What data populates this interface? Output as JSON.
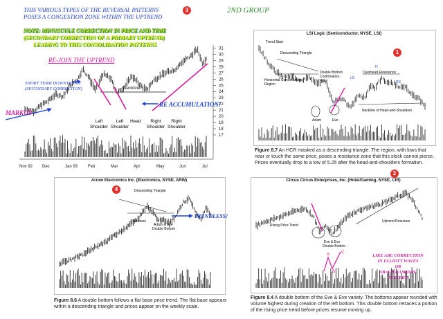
{
  "header": {
    "line1": "THIS VARIOUS TYPES OF THE REVERSAL PATTERNS",
    "line2": "POSES A CONGESTION ZONE WITHIN  THE UPTREND",
    "badge3": "3",
    "group": "2ND GROUP",
    "note1": "NOTE: MINUSCULE CORRECTION IN PRICE AND TIME",
    "note2": "(SECONDARY CORRECTION OF A PRIMARY UPTREND)",
    "note3": "LEADING TO THIS CONSOLIDATION PATTERNS",
    "rejoin": "RE-JOIN THE UPTREND"
  },
  "colors": {
    "annotation_blue": "#1a3fd6",
    "annotation_magenta": "#d81b9c",
    "note_yellow": "#ffff00",
    "note_green": "#2e8b2e",
    "badge_red": "#e0312b",
    "bar_black": "#111111"
  },
  "chart_data": [
    {
      "id": "main",
      "type": "bar",
      "title": "",
      "x_ticks": [
        "Nov 92",
        "Dec",
        "Jan 93",
        "Feb",
        "Mar",
        "Apr",
        "May",
        "Jun",
        "Jul"
      ],
      "y_ticks": [
        17,
        18,
        19,
        20,
        21,
        22,
        23,
        24,
        25,
        26,
        27,
        28,
        29,
        30,
        31
      ],
      "ylim": [
        17,
        31.5
      ],
      "price_path": [
        [
          0,
          21.2
        ],
        [
          0.05,
          20.8
        ],
        [
          0.09,
          21.8
        ],
        [
          0.13,
          22.5
        ],
        [
          0.17,
          23.6
        ],
        [
          0.21,
          23.2
        ],
        [
          0.25,
          25.0
        ],
        [
          0.29,
          26.0
        ],
        [
          0.32,
          27.6
        ],
        [
          0.35,
          26.4
        ],
        [
          0.39,
          24.2
        ],
        [
          0.43,
          26.8
        ],
        [
          0.47,
          26.2
        ],
        [
          0.51,
          23.8
        ],
        [
          0.55,
          24.8
        ],
        [
          0.59,
          26.5
        ],
        [
          0.63,
          25.2
        ],
        [
          0.67,
          24.2
        ],
        [
          0.71,
          25.8
        ],
        [
          0.75,
          26.6
        ],
        [
          0.79,
          27.2
        ],
        [
          0.83,
          27.6
        ],
        [
          0.87,
          28.8
        ],
        [
          0.91,
          29.6
        ],
        [
          0.95,
          30.8
        ],
        [
          0.98,
          28.6
        ],
        [
          1.0,
          29.4
        ]
      ],
      "annotations": {
        "short_term_1": "SHORT TERM DOWNTREND",
        "short_term_2": "(SECONDARY CORRECTION)",
        "markup": "MARKUP",
        "neckline": "Neckline",
        "re_accumulation": "RE ACCUMULATION!",
        "left_shoulder_a": "Left Shoulder",
        "left_shoulder_b": "Left Shoulder",
        "head": "Head",
        "right_shoulder_a": "Right Shoulder",
        "right_shoulder_b": "Right Shoulder"
      }
    },
    {
      "id": "fig87",
      "type": "bar",
      "title": "LSI Logic (Semiconductor, NYSE, LSI)",
      "badge": "1",
      "price_path": [
        [
          0,
          0.92
        ],
        [
          0.05,
          0.75
        ],
        [
          0.1,
          0.62
        ],
        [
          0.15,
          0.55
        ],
        [
          0.2,
          0.56
        ],
        [
          0.25,
          0.52
        ],
        [
          0.3,
          0.55
        ],
        [
          0.35,
          0.48
        ],
        [
          0.4,
          0.5
        ],
        [
          0.45,
          0.25
        ],
        [
          0.5,
          0.3
        ],
        [
          0.55,
          0.18
        ],
        [
          0.6,
          0.33
        ],
        [
          0.64,
          0.3
        ],
        [
          0.67,
          0.46
        ],
        [
          0.7,
          0.42
        ],
        [
          0.74,
          0.55
        ],
        [
          0.77,
          0.48
        ],
        [
          0.8,
          0.5
        ],
        [
          0.84,
          0.42
        ],
        [
          0.88,
          0.45
        ],
        [
          0.92,
          0.34
        ],
        [
          0.96,
          0.3
        ],
        [
          1.0,
          0.2
        ]
      ],
      "annotations": {
        "trend_start": "Trend Start",
        "descending_triangle": "Descending Triangle",
        "horizontal_1": "Horizontal Consolidation",
        "horizontal_2": "Region",
        "double_bottom_1": "Double Bottom",
        "double_bottom_2": "Confirmation",
        "double_bottom_3": "Price",
        "ls": "LS",
        "overhead_resistance": "Overhead Resistance",
        "h": "H",
        "rs": "RS",
        "neckline_hs": "Neckline of Head-and-Shoulders",
        "adam": "Adam",
        "eve": "Eve"
      },
      "caption_label": "Figure 8.7",
      "caption_text": "An HCR masked as a descending triangle. The region, with lows that near or touch the same price, poses a resistance zone that this stock cannot pierce. Prices eventually drop to a low of 5.25 after the head-and-shoulders formation."
    },
    {
      "id": "fig86",
      "type": "bar",
      "title": "Arrow Electronics Inc. (Electronics, NYSE, ARW)",
      "badge": "4",
      "price_path": [
        [
          0,
          0.05
        ],
        [
          0.05,
          0.08
        ],
        [
          0.1,
          0.12
        ],
        [
          0.15,
          0.16
        ],
        [
          0.2,
          0.22
        ],
        [
          0.25,
          0.28
        ],
        [
          0.3,
          0.32
        ],
        [
          0.35,
          0.4
        ],
        [
          0.4,
          0.46
        ],
        [
          0.45,
          0.54
        ],
        [
          0.5,
          0.6
        ],
        [
          0.55,
          0.72
        ],
        [
          0.58,
          0.8
        ],
        [
          0.61,
          0.74
        ],
        [
          0.64,
          0.66
        ],
        [
          0.67,
          0.6
        ],
        [
          0.7,
          0.62
        ],
        [
          0.73,
          0.58
        ],
        [
          0.76,
          0.64
        ],
        [
          0.79,
          0.75
        ],
        [
          0.82,
          0.85
        ],
        [
          0.86,
          0.9
        ],
        [
          0.9,
          0.72
        ],
        [
          0.94,
          0.62
        ],
        [
          0.97,
          0.78
        ],
        [
          1.0,
          0.7
        ]
      ],
      "annotations": {
        "descending_triangle": "Descending Triangle",
        "flat_base": "Flat Base",
        "adam_eve_1": "Adam & Eve",
        "adam_eve_2": "Double Bottom",
        "trendless": "TRENDLESS!"
      },
      "caption_label": "Figure 8.6",
      "caption_text": "A double bottom follows a flat base price trend. The flat base appears within a descending triangle and prices appear on the weekly scale."
    },
    {
      "id": "fig84",
      "type": "bar",
      "title": "Circus Circus Enterprises, Inc. (Hotel/Gaming, NYSE, CIR)",
      "badge": "2",
      "price_path": [
        [
          0,
          0.5
        ],
        [
          0.05,
          0.55
        ],
        [
          0.1,
          0.58
        ],
        [
          0.15,
          0.62
        ],
        [
          0.2,
          0.66
        ],
        [
          0.25,
          0.7
        ],
        [
          0.3,
          0.72
        ],
        [
          0.35,
          0.6
        ],
        [
          0.38,
          0.42
        ],
        [
          0.42,
          0.5
        ],
        [
          0.46,
          0.4
        ],
        [
          0.5,
          0.5
        ],
        [
          0.55,
          0.62
        ],
        [
          0.6,
          0.68
        ],
        [
          0.65,
          0.72
        ],
        [
          0.7,
          0.75
        ],
        [
          0.75,
          0.78
        ],
        [
          0.8,
          0.82
        ],
        [
          0.85,
          0.88
        ],
        [
          0.9,
          0.92
        ],
        [
          0.94,
          0.84
        ],
        [
          0.97,
          0.72
        ],
        [
          1.0,
          0.6
        ]
      ],
      "annotations": {
        "rising_trend": "Rising Price Trend",
        "eve_1": "Eve & Eve",
        "eve_2": "Double Bottom",
        "uptrend_resumes": "Uptrend Resumes",
        "abc_1": "LIKE ABC CORRECTION",
        "abc_2": "IN ELLIOTT WAVES",
        "abc_3": "OR",
        "abc_4": "AB=CD HAMONIC",
        "abc_5": "PATTERN",
        "a": "A",
        "b": "B",
        "c": "C"
      },
      "caption_label": "Figure 8.4",
      "caption_text": "A double bottom of the Eve & Eve variety. The bottoms appear rounded with volume highest during creation of the left bottom. This double bottom retraces a portion of the rising price trend before prices resume moving up."
    }
  ]
}
